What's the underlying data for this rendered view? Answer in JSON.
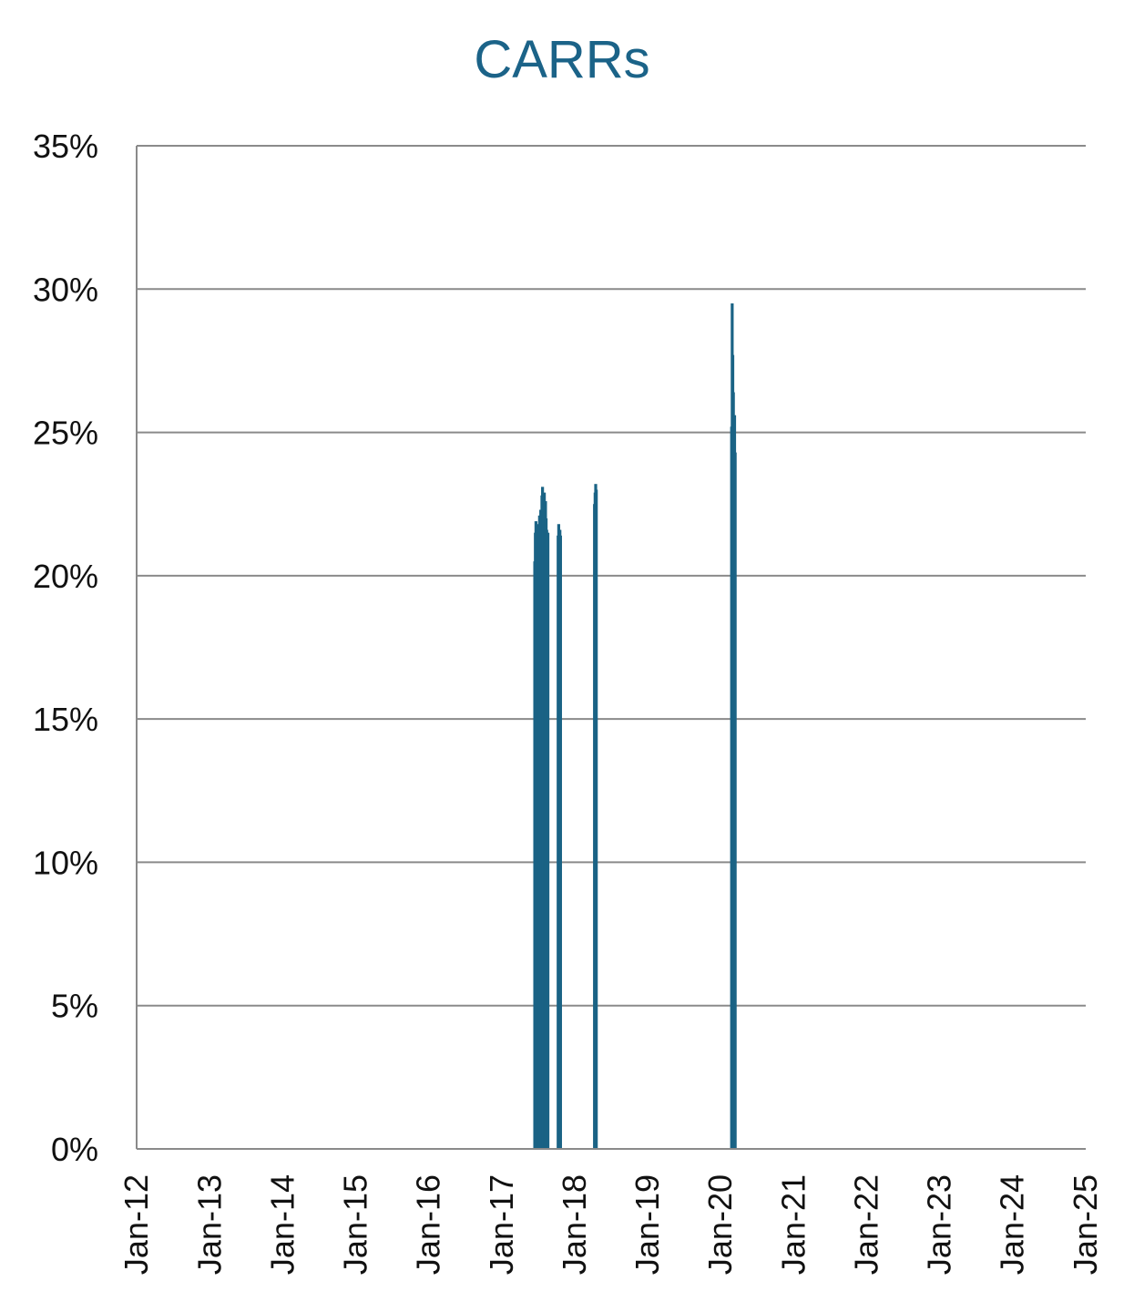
{
  "chart_data": {
    "type": "bar",
    "title": "CARRs",
    "xlabel": "",
    "ylabel": "",
    "ylim": [
      0,
      0.35
    ],
    "yticks": [
      {
        "value": 0,
        "label": "0%"
      },
      {
        "value": 0.05,
        "label": "5%"
      },
      {
        "value": 0.1,
        "label": "10%"
      },
      {
        "value": 0.15,
        "label": "15%"
      },
      {
        "value": 0.2,
        "label": "20%"
      },
      {
        "value": 0.25,
        "label": "25%"
      },
      {
        "value": 0.3,
        "label": "30%"
      },
      {
        "value": 0.35,
        "label": "35%"
      }
    ],
    "xlim": [
      "2012-01",
      "2025-01"
    ],
    "xticks": [
      {
        "date": "2012-01",
        "label": "Jan-12"
      },
      {
        "date": "2013-01",
        "label": "Jan-13"
      },
      {
        "date": "2014-01",
        "label": "Jan-14"
      },
      {
        "date": "2015-01",
        "label": "Jan-15"
      },
      {
        "date": "2016-01",
        "label": "Jan-16"
      },
      {
        "date": "2017-01",
        "label": "Jan-17"
      },
      {
        "date": "2018-01",
        "label": "Jan-18"
      },
      {
        "date": "2019-01",
        "label": "Jan-19"
      },
      {
        "date": "2020-01",
        "label": "Jan-20"
      },
      {
        "date": "2021-01",
        "label": "Jan-21"
      },
      {
        "date": "2022-01",
        "label": "Jan-22"
      },
      {
        "date": "2023-01",
        "label": "Jan-23"
      },
      {
        "date": "2024-01",
        "label": "Jan-24"
      },
      {
        "date": "2025-01",
        "label": "Jan-25"
      }
    ],
    "grid": true,
    "bar_color": "#1a6385",
    "title_color": "#1b6388",
    "points": [
      {
        "x": "2017-06-15",
        "y": 0.205
      },
      {
        "x": "2017-06-18",
        "y": 0.215
      },
      {
        "x": "2017-06-21",
        "y": 0.219
      },
      {
        "x": "2017-06-24",
        "y": 0.21
      },
      {
        "x": "2017-06-27",
        "y": 0.213
      },
      {
        "x": "2017-06-30",
        "y": 0.212
      },
      {
        "x": "2017-07-03",
        "y": 0.218
      },
      {
        "x": "2017-07-06",
        "y": 0.215
      },
      {
        "x": "2017-07-09",
        "y": 0.221
      },
      {
        "x": "2017-07-12",
        "y": 0.22
      },
      {
        "x": "2017-07-15",
        "y": 0.223
      },
      {
        "x": "2017-07-18",
        "y": 0.219
      },
      {
        "x": "2017-07-21",
        "y": 0.228
      },
      {
        "x": "2017-07-24",
        "y": 0.231
      },
      {
        "x": "2017-07-27",
        "y": 0.225
      },
      {
        "x": "2017-07-30",
        "y": 0.222
      },
      {
        "x": "2017-08-02",
        "y": 0.229
      },
      {
        "x": "2017-08-05",
        "y": 0.218
      },
      {
        "x": "2017-08-08",
        "y": 0.226
      },
      {
        "x": "2017-08-11",
        "y": 0.22
      },
      {
        "x": "2017-08-14",
        "y": 0.216
      },
      {
        "x": "2017-08-17",
        "y": 0.209
      },
      {
        "x": "2017-08-20",
        "y": 0.215
      },
      {
        "x": "2017-10-10",
        "y": 0.214
      },
      {
        "x": "2017-10-13",
        "y": 0.218
      },
      {
        "x": "2017-10-16",
        "y": 0.212
      },
      {
        "x": "2017-10-19",
        "y": 0.216
      },
      {
        "x": "2017-10-22",
        "y": 0.214
      },
      {
        "x": "2018-04-10",
        "y": 0.225
      },
      {
        "x": "2018-04-13",
        "y": 0.229
      },
      {
        "x": "2018-04-16",
        "y": 0.232
      },
      {
        "x": "2018-04-19",
        "y": 0.23
      },
      {
        "x": "2020-02-25",
        "y": 0.252
      },
      {
        "x": "2020-02-28",
        "y": 0.295
      },
      {
        "x": "2020-03-02",
        "y": 0.277
      },
      {
        "x": "2020-03-05",
        "y": 0.264
      },
      {
        "x": "2020-03-08",
        "y": 0.246
      },
      {
        "x": "2020-03-11",
        "y": 0.256
      },
      {
        "x": "2020-03-14",
        "y": 0.243
      }
    ]
  }
}
